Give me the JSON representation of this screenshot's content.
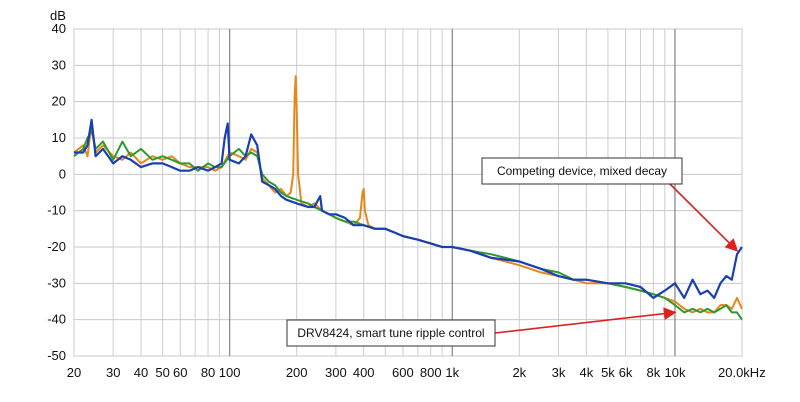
{
  "chart_data": {
    "type": "line",
    "title": "",
    "xlabel": "",
    "ylabel": "",
    "y_unit_label": "dB",
    "x_scale": "log",
    "xlim": [
      20,
      20000
    ],
    "ylim": [
      -50,
      40
    ],
    "grid": true,
    "y_ticks": [
      40,
      30,
      20,
      10,
      0,
      -10,
      -20,
      -30,
      -40,
      -50
    ],
    "x_tick_labels": [
      {
        "value": 20,
        "label": "20"
      },
      {
        "value": 30,
        "label": "30"
      },
      {
        "value": 40,
        "label": "40"
      },
      {
        "value": 50,
        "label": "50"
      },
      {
        "value": 60,
        "label": "60"
      },
      {
        "value": 80,
        "label": "80"
      },
      {
        "value": 100,
        "label": "100"
      },
      {
        "value": 200,
        "label": "200"
      },
      {
        "value": 300,
        "label": "300"
      },
      {
        "value": 400,
        "label": "400"
      },
      {
        "value": 600,
        "label": "600"
      },
      {
        "value": 800,
        "label": "800"
      },
      {
        "value": 1000,
        "label": "1k"
      },
      {
        "value": 2000,
        "label": "2k"
      },
      {
        "value": 3000,
        "label": "3k"
      },
      {
        "value": 4000,
        "label": "4k"
      },
      {
        "value": 5000,
        "label": "5k"
      },
      {
        "value": 6000,
        "label": "6k"
      },
      {
        "value": 8000,
        "label": "8k"
      },
      {
        "value": 10000,
        "label": "10k"
      },
      {
        "value": 20000,
        "label": "20.0kHz"
      }
    ],
    "series": [
      {
        "color": "#e8861a",
        "points": [
          [
            20,
            6
          ],
          [
            22,
            8
          ],
          [
            23,
            5
          ],
          [
            24,
            14
          ],
          [
            25,
            6
          ],
          [
            27,
            8
          ],
          [
            30,
            5
          ],
          [
            33,
            4
          ],
          [
            36,
            6
          ],
          [
            40,
            3
          ],
          [
            45,
            5
          ],
          [
            50,
            4
          ],
          [
            55,
            5
          ],
          [
            60,
            3
          ],
          [
            66,
            2
          ],
          [
            72,
            2
          ],
          [
            80,
            2
          ],
          [
            86,
            1
          ],
          [
            92,
            2
          ],
          [
            100,
            6
          ],
          [
            110,
            5
          ],
          [
            118,
            4
          ],
          [
            125,
            7
          ],
          [
            133,
            6
          ],
          [
            140,
            -1
          ],
          [
            150,
            -3
          ],
          [
            160,
            -5
          ],
          [
            170,
            -4
          ],
          [
            180,
            -6
          ],
          [
            188,
            -5
          ],
          [
            193,
            0
          ],
          [
            196,
            22
          ],
          [
            198,
            27
          ],
          [
            200,
            18
          ],
          [
            203,
            0
          ],
          [
            210,
            -8
          ],
          [
            225,
            -9
          ],
          [
            240,
            -8
          ],
          [
            260,
            -10
          ],
          [
            280,
            -11
          ],
          [
            300,
            -12
          ],
          [
            330,
            -13
          ],
          [
            360,
            -14
          ],
          [
            385,
            -12
          ],
          [
            395,
            -5
          ],
          [
            400,
            -4
          ],
          [
            405,
            -10
          ],
          [
            420,
            -14
          ],
          [
            450,
            -15
          ],
          [
            500,
            -15
          ],
          [
            550,
            -16
          ],
          [
            600,
            -17
          ],
          [
            700,
            -18
          ],
          [
            800,
            -19
          ],
          [
            900,
            -20
          ],
          [
            1000,
            -20
          ],
          [
            1200,
            -21
          ],
          [
            1500,
            -23
          ],
          [
            2000,
            -25
          ],
          [
            2500,
            -27
          ],
          [
            3000,
            -28
          ],
          [
            3500,
            -29
          ],
          [
            4000,
            -30
          ],
          [
            5000,
            -30
          ],
          [
            6000,
            -31
          ],
          [
            7000,
            -32
          ],
          [
            8000,
            -33
          ],
          [
            9000,
            -34
          ],
          [
            10000,
            -35
          ],
          [
            11000,
            -37
          ],
          [
            12000,
            -38
          ],
          [
            13000,
            -37
          ],
          [
            14000,
            -38
          ],
          [
            15000,
            -38
          ],
          [
            16000,
            -36
          ],
          [
            17000,
            -36
          ],
          [
            18000,
            -37
          ],
          [
            19000,
            -34
          ],
          [
            20000,
            -37
          ]
        ]
      },
      {
        "color": "#2e9a2e",
        "points": [
          [
            20,
            5
          ],
          [
            22,
            7
          ],
          [
            23,
            10
          ],
          [
            24,
            12
          ],
          [
            25,
            7
          ],
          [
            27,
            9
          ],
          [
            30,
            4
          ],
          [
            33,
            9
          ],
          [
            36,
            5
          ],
          [
            40,
            7
          ],
          [
            45,
            4
          ],
          [
            50,
            5
          ],
          [
            55,
            4
          ],
          [
            60,
            3
          ],
          [
            66,
            3
          ],
          [
            72,
            1
          ],
          [
            80,
            3
          ],
          [
            86,
            2
          ],
          [
            92,
            2
          ],
          [
            100,
            5
          ],
          [
            110,
            7
          ],
          [
            118,
            5
          ],
          [
            125,
            6
          ],
          [
            133,
            5
          ],
          [
            140,
            0
          ],
          [
            150,
            -2
          ],
          [
            160,
            -3
          ],
          [
            170,
            -5
          ],
          [
            180,
            -6
          ],
          [
            200,
            -7
          ],
          [
            225,
            -8
          ],
          [
            240,
            -9
          ],
          [
            260,
            -10
          ],
          [
            280,
            -11
          ],
          [
            300,
            -12
          ],
          [
            330,
            -13
          ],
          [
            360,
            -13
          ],
          [
            400,
            -14
          ],
          [
            450,
            -15
          ],
          [
            500,
            -15
          ],
          [
            550,
            -16
          ],
          [
            600,
            -17
          ],
          [
            700,
            -18
          ],
          [
            800,
            -19
          ],
          [
            900,
            -20
          ],
          [
            1000,
            -20
          ],
          [
            1200,
            -21
          ],
          [
            1500,
            -22
          ],
          [
            2000,
            -24
          ],
          [
            2500,
            -26
          ],
          [
            3000,
            -27
          ],
          [
            3500,
            -29
          ],
          [
            4000,
            -29
          ],
          [
            5000,
            -30
          ],
          [
            6000,
            -31
          ],
          [
            7000,
            -32
          ],
          [
            8000,
            -33
          ],
          [
            9000,
            -34
          ],
          [
            10000,
            -36
          ],
          [
            11000,
            -38
          ],
          [
            12000,
            -37
          ],
          [
            13000,
            -38
          ],
          [
            14000,
            -37
          ],
          [
            15000,
            -38
          ],
          [
            16000,
            -37
          ],
          [
            17000,
            -36
          ],
          [
            18000,
            -38
          ],
          [
            19000,
            -38
          ],
          [
            20000,
            -40
          ]
        ]
      },
      {
        "color": "#1a3fb0",
        "points": [
          [
            20,
            6
          ],
          [
            22,
            6
          ],
          [
            23,
            8
          ],
          [
            24,
            15
          ],
          [
            25,
            5
          ],
          [
            27,
            7
          ],
          [
            30,
            3
          ],
          [
            33,
            5
          ],
          [
            36,
            4
          ],
          [
            40,
            2
          ],
          [
            45,
            3
          ],
          [
            50,
            3
          ],
          [
            55,
            2
          ],
          [
            60,
            1
          ],
          [
            66,
            1
          ],
          [
            72,
            2
          ],
          [
            80,
            1
          ],
          [
            86,
            2
          ],
          [
            92,
            3
          ],
          [
            95,
            10
          ],
          [
            98,
            14
          ],
          [
            100,
            4
          ],
          [
            110,
            3
          ],
          [
            118,
            5
          ],
          [
            125,
            11
          ],
          [
            133,
            8
          ],
          [
            140,
            -2
          ],
          [
            150,
            -3
          ],
          [
            160,
            -4
          ],
          [
            170,
            -6
          ],
          [
            180,
            -7
          ],
          [
            200,
            -8
          ],
          [
            225,
            -9
          ],
          [
            240,
            -9
          ],
          [
            255,
            -6
          ],
          [
            260,
            -10
          ],
          [
            280,
            -11
          ],
          [
            300,
            -11
          ],
          [
            330,
            -12
          ],
          [
            360,
            -14
          ],
          [
            400,
            -14
          ],
          [
            450,
            -15
          ],
          [
            500,
            -15
          ],
          [
            550,
            -16
          ],
          [
            600,
            -17
          ],
          [
            700,
            -18
          ],
          [
            800,
            -19
          ],
          [
            900,
            -20
          ],
          [
            1000,
            -20
          ],
          [
            1200,
            -21
          ],
          [
            1500,
            -23
          ],
          [
            2000,
            -24
          ],
          [
            2500,
            -26
          ],
          [
            3000,
            -28
          ],
          [
            3500,
            -29
          ],
          [
            4000,
            -29
          ],
          [
            5000,
            -30
          ],
          [
            6000,
            -30
          ],
          [
            7000,
            -31
          ],
          [
            8000,
            -34
          ],
          [
            9000,
            -32
          ],
          [
            10000,
            -30
          ],
          [
            11000,
            -34
          ],
          [
            12000,
            -29
          ],
          [
            13000,
            -33
          ],
          [
            14000,
            -32
          ],
          [
            15000,
            -34
          ],
          [
            16000,
            -30
          ],
          [
            17000,
            -28
          ],
          [
            18000,
            -29
          ],
          [
            19000,
            -22
          ],
          [
            20000,
            -20
          ]
        ]
      }
    ],
    "annotations": [
      {
        "text": "Competing device, mixed decay",
        "arrow_to": [
          19000,
          -21
        ]
      },
      {
        "text": "DRV8424, smart tune ripple control",
        "arrow_to": [
          10000,
          -38
        ]
      }
    ]
  }
}
